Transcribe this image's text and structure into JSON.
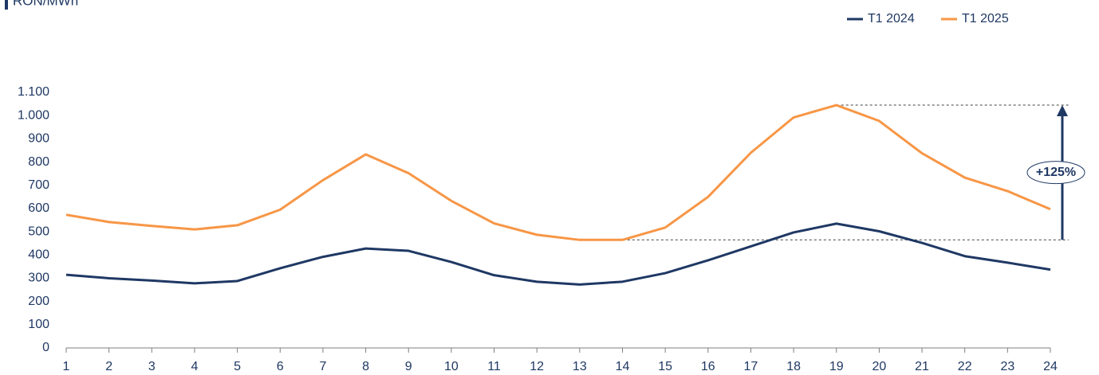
{
  "chart_data": {
    "type": "line",
    "title": "RON/MWh",
    "x": [
      1,
      2,
      3,
      4,
      5,
      6,
      7,
      8,
      9,
      10,
      11,
      12,
      13,
      14,
      15,
      16,
      17,
      18,
      19,
      20,
      21,
      22,
      23,
      24
    ],
    "xlim": [
      1,
      24
    ],
    "xticks": [
      1,
      2,
      3,
      4,
      5,
      6,
      7,
      8,
      9,
      10,
      11,
      12,
      13,
      14,
      15,
      16,
      17,
      18,
      19,
      20,
      21,
      22,
      23,
      24
    ],
    "ylim": [
      0,
      1100
    ],
    "yticks": [
      0,
      100,
      200,
      300,
      400,
      500,
      600,
      700,
      800,
      900,
      {
        "value": 1000,
        "label": "1.000"
      },
      {
        "value": 1100,
        "label": "1.100"
      }
    ],
    "legend": "top-right",
    "series": [
      {
        "name": "T1 2024",
        "color": "#1f3864",
        "values": [
          315,
          300,
          290,
          278,
          288,
          343,
          392,
          428,
          418,
          370,
          313,
          285,
          273,
          285,
          322,
          377,
          437,
          497,
          535,
          502,
          452,
          395,
          367,
          337
        ]
      },
      {
        "name": "T1 2025",
        "color": "#f79646",
        "values": [
          573,
          542,
          525,
          510,
          528,
          595,
          722,
          833,
          752,
          633,
          536,
          487,
          465,
          465,
          518,
          650,
          840,
          992,
          1045,
          977,
          838,
          733,
          675,
          597
        ]
      }
    ],
    "annotation": "+125%"
  }
}
